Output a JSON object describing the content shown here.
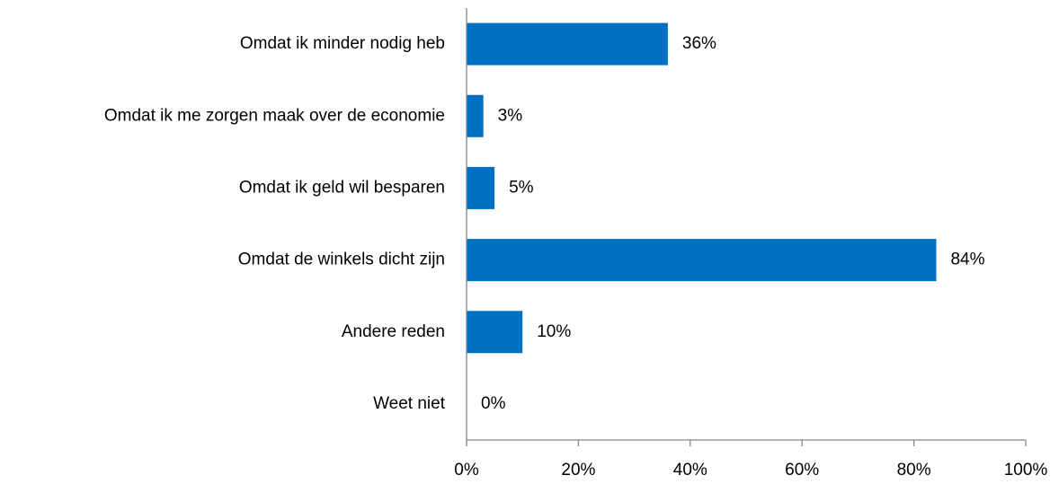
{
  "chart_data": {
    "type": "barh",
    "categories": [
      "Omdat ik minder nodig heb",
      "Omdat ik me zorgen maak over de economie",
      "Omdat ik geld wil besparen",
      "Omdat de winkels dicht zijn",
      "Andere reden",
      "Weet niet"
    ],
    "values": [
      36,
      3,
      5,
      84,
      10,
      0
    ],
    "value_labels": [
      "36%",
      "3%",
      "5%",
      "84%",
      "10%",
      "0%"
    ],
    "color": "#0070c0",
    "xlim": [
      0,
      100
    ],
    "xticks": [
      {
        "value": 0,
        "label": "0%"
      },
      {
        "value": 20,
        "label": "20%"
      },
      {
        "value": 40,
        "label": "40%"
      },
      {
        "value": 60,
        "label": "60%"
      },
      {
        "value": 80,
        "label": "80%"
      },
      {
        "value": 100,
        "label": "100%"
      }
    ],
    "grid": false
  }
}
